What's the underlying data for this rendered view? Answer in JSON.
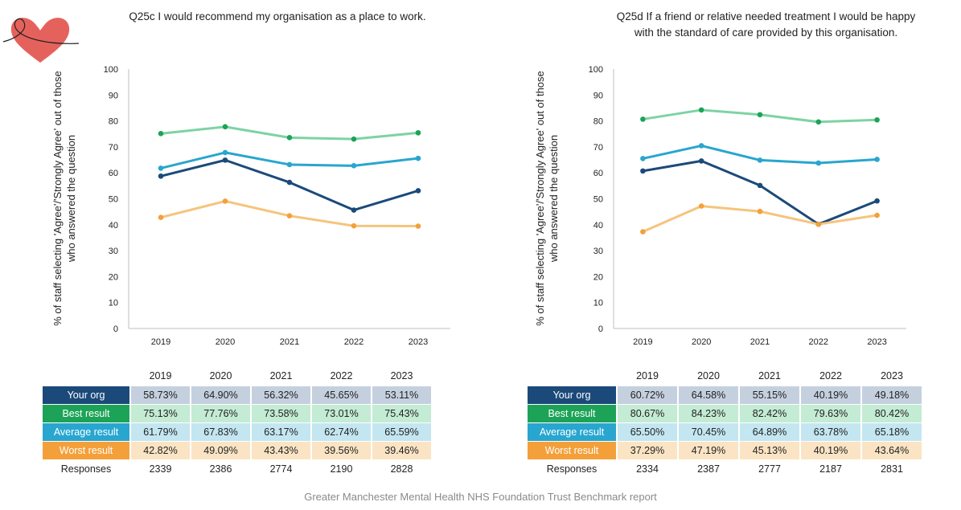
{
  "footer": "Greater Manchester Mental Health NHS Foundation Trust Benchmark report",
  "colors": {
    "your_org": "#1b4a7a",
    "best": "#7dd3a4",
    "average": "#28a6cf",
    "worst": "#f6c47c",
    "best_marker": "#1da357",
    "worst_marker": "#f4a03a"
  },
  "chart_data": [
    {
      "type": "line",
      "title": "Q25c I would recommend my organisation as a place to work.",
      "ylabel": "% of staff selecting 'Agree'/'Strongly Agree' out of those who answered the question",
      "xlabel": "",
      "categories": [
        "2019",
        "2020",
        "2021",
        "2022",
        "2023"
      ],
      "ylim": [
        0,
        100
      ],
      "yticks": [
        0,
        10,
        20,
        30,
        40,
        50,
        60,
        70,
        80,
        90,
        100
      ],
      "series": [
        {
          "key": "best",
          "name": "Best result",
          "values": [
            75.13,
            77.76,
            73.58,
            73.01,
            75.43
          ]
        },
        {
          "key": "average",
          "name": "Average result",
          "values": [
            61.79,
            67.83,
            63.17,
            62.74,
            65.59
          ]
        },
        {
          "key": "your_org",
          "name": "Your org",
          "values": [
            58.73,
            64.9,
            56.32,
            45.65,
            53.11
          ]
        },
        {
          "key": "worst",
          "name": "Worst result",
          "values": [
            42.82,
            49.09,
            43.43,
            39.56,
            39.46
          ]
        }
      ],
      "table": {
        "years": [
          "2019",
          "2020",
          "2021",
          "2022",
          "2023"
        ],
        "rows": [
          {
            "key": "your_org",
            "label": "Your org",
            "cells": [
              "58.73%",
              "64.90%",
              "56.32%",
              "45.65%",
              "53.11%"
            ]
          },
          {
            "key": "best",
            "label": "Best result",
            "cells": [
              "75.13%",
              "77.76%",
              "73.58%",
              "73.01%",
              "75.43%"
            ]
          },
          {
            "key": "average",
            "label": "Average result",
            "cells": [
              "61.79%",
              "67.83%",
              "63.17%",
              "62.74%",
              "65.59%"
            ]
          },
          {
            "key": "worst",
            "label": "Worst result",
            "cells": [
              "42.82%",
              "49.09%",
              "43.43%",
              "39.56%",
              "39.46%"
            ]
          }
        ],
        "responses_label": "Responses",
        "responses": [
          "2339",
          "2386",
          "2774",
          "2190",
          "2828"
        ]
      }
    },
    {
      "type": "line",
      "title": "Q25d If a friend or relative needed treatment I would be happy with the standard of care provided by this organisation.",
      "ylabel": "% of staff selecting 'Agree'/'Strongly Agree' out of those who answered the question",
      "xlabel": "",
      "categories": [
        "2019",
        "2020",
        "2021",
        "2022",
        "2023"
      ],
      "ylim": [
        0,
        100
      ],
      "yticks": [
        0,
        10,
        20,
        30,
        40,
        50,
        60,
        70,
        80,
        90,
        100
      ],
      "series": [
        {
          "key": "best",
          "name": "Best result",
          "values": [
            80.67,
            84.23,
            82.42,
            79.63,
            80.42
          ]
        },
        {
          "key": "average",
          "name": "Average result",
          "values": [
            65.5,
            70.45,
            64.89,
            63.78,
            65.18
          ]
        },
        {
          "key": "your_org",
          "name": "Your org",
          "values": [
            60.72,
            64.58,
            55.15,
            40.19,
            49.18
          ]
        },
        {
          "key": "worst",
          "name": "Worst result",
          "values": [
            37.29,
            47.19,
            45.13,
            40.19,
            43.64
          ]
        }
      ],
      "table": {
        "years": [
          "2019",
          "2020",
          "2021",
          "2022",
          "2023"
        ],
        "rows": [
          {
            "key": "your_org",
            "label": "Your org",
            "cells": [
              "60.72%",
              "64.58%",
              "55.15%",
              "40.19%",
              "49.18%"
            ]
          },
          {
            "key": "best",
            "label": "Best result",
            "cells": [
              "80.67%",
              "84.23%",
              "82.42%",
              "79.63%",
              "80.42%"
            ]
          },
          {
            "key": "average",
            "label": "Average result",
            "cells": [
              "65.50%",
              "70.45%",
              "64.89%",
              "63.78%",
              "65.18%"
            ]
          },
          {
            "key": "worst",
            "label": "Worst result",
            "cells": [
              "37.29%",
              "47.19%",
              "45.13%",
              "40.19%",
              "43.64%"
            ]
          }
        ],
        "responses_label": "Responses",
        "responses": [
          "2334",
          "2387",
          "2777",
          "2187",
          "2831"
        ]
      }
    }
  ]
}
